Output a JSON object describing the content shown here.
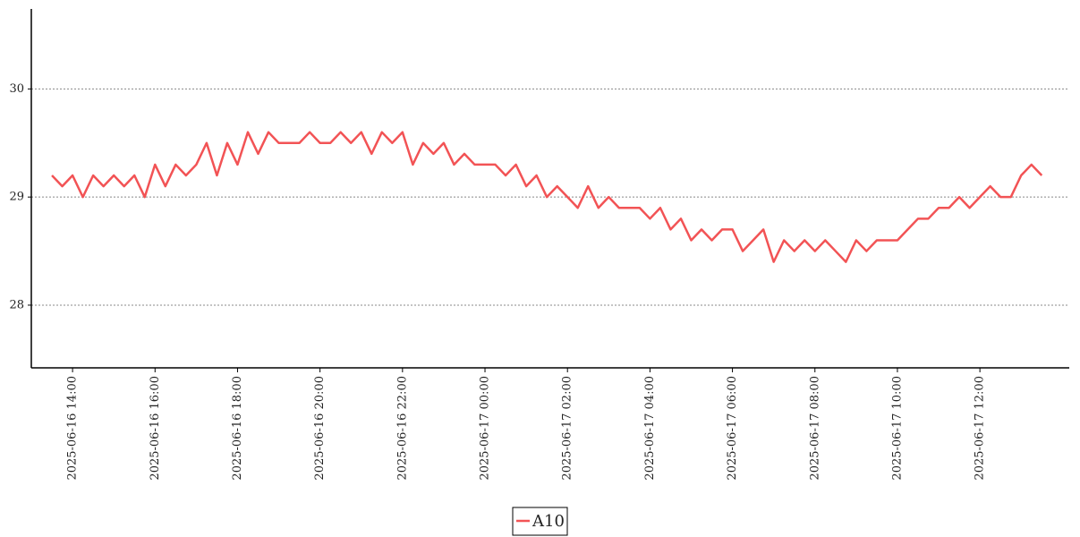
{
  "chart_data": {
    "type": "line",
    "x": [
      "2025-06-16 13:30",
      "2025-06-16 13:45",
      "2025-06-16 14:00",
      "2025-06-16 14:15",
      "2025-06-16 14:30",
      "2025-06-16 14:45",
      "2025-06-16 15:00",
      "2025-06-16 15:15",
      "2025-06-16 15:30",
      "2025-06-16 15:45",
      "2025-06-16 16:00",
      "2025-06-16 16:15",
      "2025-06-16 16:30",
      "2025-06-16 16:45",
      "2025-06-16 17:00",
      "2025-06-16 17:15",
      "2025-06-16 17:30",
      "2025-06-16 17:45",
      "2025-06-16 18:00",
      "2025-06-16 18:15",
      "2025-06-16 18:30",
      "2025-06-16 18:45",
      "2025-06-16 19:00",
      "2025-06-16 19:15",
      "2025-06-16 19:30",
      "2025-06-16 19:45",
      "2025-06-16 20:00",
      "2025-06-16 20:15",
      "2025-06-16 20:30",
      "2025-06-16 20:45",
      "2025-06-16 21:00",
      "2025-06-16 21:15",
      "2025-06-16 21:30",
      "2025-06-16 21:45",
      "2025-06-16 22:00",
      "2025-06-16 22:15",
      "2025-06-16 22:30",
      "2025-06-16 22:45",
      "2025-06-16 23:00",
      "2025-06-16 23:15",
      "2025-06-16 23:30",
      "2025-06-16 23:45",
      "2025-06-17 00:00",
      "2025-06-17 00:15",
      "2025-06-17 00:30",
      "2025-06-17 00:45",
      "2025-06-17 01:00",
      "2025-06-17 01:15",
      "2025-06-17 01:30",
      "2025-06-17 01:45",
      "2025-06-17 02:00",
      "2025-06-17 02:15",
      "2025-06-17 02:30",
      "2025-06-17 02:45",
      "2025-06-17 03:00",
      "2025-06-17 03:15",
      "2025-06-17 03:30",
      "2025-06-17 03:45",
      "2025-06-17 04:00",
      "2025-06-17 04:15",
      "2025-06-17 04:30",
      "2025-06-17 04:45",
      "2025-06-17 05:00",
      "2025-06-17 05:15",
      "2025-06-17 05:30",
      "2025-06-17 05:45",
      "2025-06-17 06:00",
      "2025-06-17 06:15",
      "2025-06-17 06:30",
      "2025-06-17 06:45",
      "2025-06-17 07:00",
      "2025-06-17 07:15",
      "2025-06-17 07:30",
      "2025-06-17 07:45",
      "2025-06-17 08:00",
      "2025-06-17 08:15",
      "2025-06-17 08:30",
      "2025-06-17 08:45",
      "2025-06-17 09:00",
      "2025-06-17 09:15",
      "2025-06-17 09:30",
      "2025-06-17 09:45",
      "2025-06-17 10:00",
      "2025-06-17 10:15",
      "2025-06-17 10:30",
      "2025-06-17 10:45",
      "2025-06-17 11:00",
      "2025-06-17 11:15",
      "2025-06-17 11:30",
      "2025-06-17 11:45",
      "2025-06-17 12:00",
      "2025-06-17 12:15",
      "2025-06-17 12:30",
      "2025-06-17 12:45",
      "2025-06-17 13:00",
      "2025-06-17 13:15",
      "2025-06-17 13:30"
    ],
    "series": [
      {
        "name": "A10",
        "color": "#f25355",
        "values": [
          29.2,
          29.1,
          29.2,
          29.0,
          29.2,
          29.1,
          29.2,
          29.1,
          29.2,
          29.0,
          29.3,
          29.1,
          29.3,
          29.2,
          29.3,
          29.5,
          29.2,
          29.5,
          29.3,
          29.6,
          29.4,
          29.6,
          29.5,
          29.5,
          29.5,
          29.6,
          29.5,
          29.5,
          29.6,
          29.5,
          29.6,
          29.4,
          29.6,
          29.5,
          29.6,
          29.3,
          29.5,
          29.4,
          29.5,
          29.3,
          29.4,
          29.3,
          29.3,
          29.3,
          29.2,
          29.3,
          29.1,
          29.2,
          29.0,
          29.1,
          29.0,
          28.9,
          29.1,
          28.9,
          29.0,
          28.9,
          28.9,
          28.9,
          28.8,
          28.9,
          28.7,
          28.8,
          28.6,
          28.7,
          28.6,
          28.7,
          28.7,
          28.5,
          28.6,
          28.7,
          28.4,
          28.6,
          28.5,
          28.6,
          28.5,
          28.6,
          28.5,
          28.4,
          28.6,
          28.5,
          28.6,
          28.6,
          28.6,
          28.7,
          28.8,
          28.8,
          28.9,
          28.9,
          29.0,
          28.9,
          29.0,
          29.1,
          29.0,
          29.0,
          29.2,
          29.3,
          29.2
        ]
      }
    ],
    "xlim": [
      "2025-06-16 13:00",
      "2025-06-17 14:10"
    ],
    "xticks": [
      "2025-06-16 14:00",
      "2025-06-16 16:00",
      "2025-06-16 18:00",
      "2025-06-16 20:00",
      "2025-06-16 22:00",
      "2025-06-17 00:00",
      "2025-06-17 02:00",
      "2025-06-17 04:00",
      "2025-06-17 06:00",
      "2025-06-17 08:00",
      "2025-06-17 10:00",
      "2025-06-17 12:00"
    ],
    "ylim": [
      27.42,
      30.74
    ],
    "yticks": [
      28,
      29,
      30
    ],
    "grid": true,
    "legend": "bottom"
  }
}
